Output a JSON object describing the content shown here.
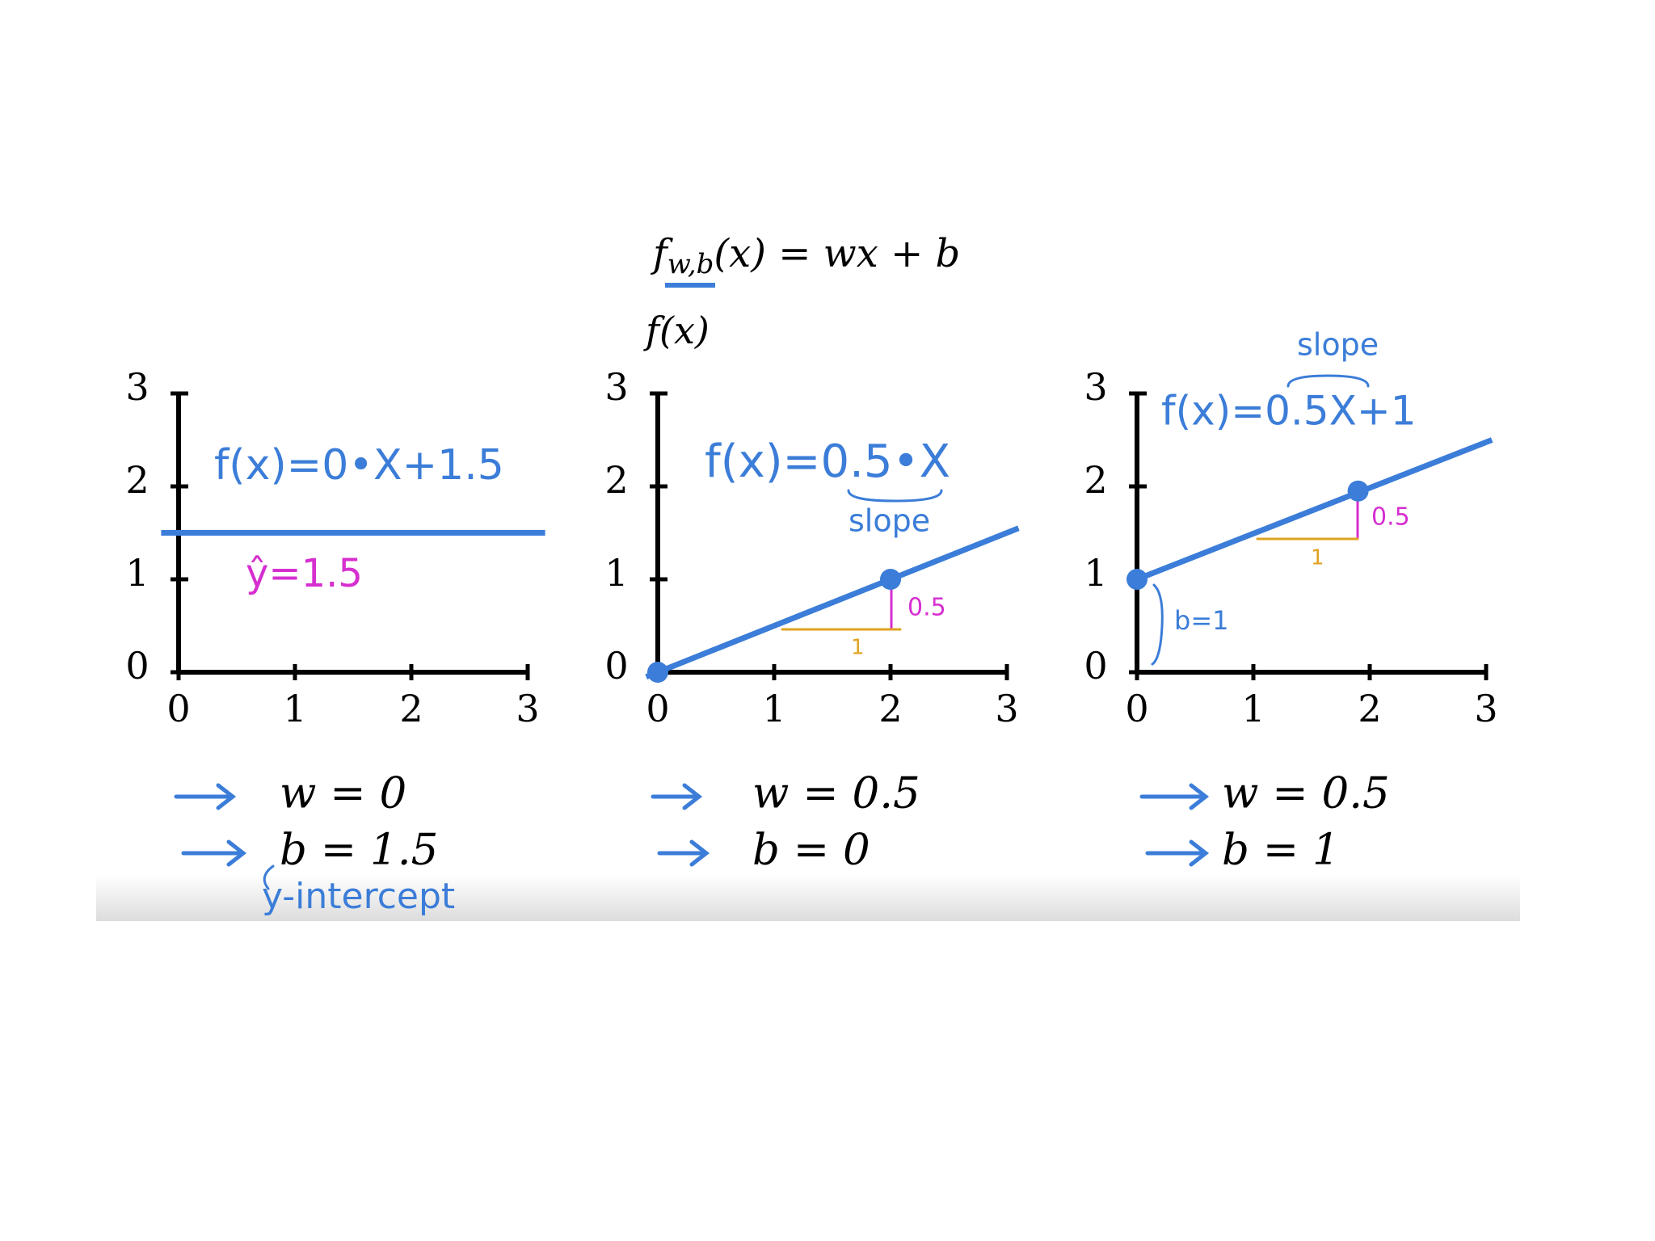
{
  "header": {
    "formula": {
      "f": "f",
      "subscript": "w,b",
      "rest": "(x) = wx + b"
    },
    "y_label": "f(x)"
  },
  "chart_data": [
    {
      "type": "line",
      "x": [
        -0.15,
        3.15
      ],
      "series": [
        {
          "color": "#3b7dd8",
          "values": [
            1.5,
            1.5
          ]
        }
      ],
      "xlim": [
        0,
        3
      ],
      "ylim": [
        0,
        3
      ],
      "xticks": [
        0,
        1,
        2,
        3
      ],
      "yticks": [
        0,
        1,
        2,
        3
      ],
      "annotations": [
        {
          "text": "f(x)=0•X+1.5",
          "color": "#3b7dd8"
        },
        {
          "text": "ŷ=1.5",
          "color": "#d62fd0"
        },
        {
          "text": "y-intercept",
          "color": "#3b7dd8"
        }
      ],
      "parameters": [
        "w = 0",
        "b = 1.5"
      ]
    },
    {
      "type": "line",
      "x": [
        -0.1,
        3.1
      ],
      "series": [
        {
          "color": "#3b7dd8",
          "values": [
            -0.05,
            1.55
          ]
        }
      ],
      "points": {
        "x": [
          0,
          2
        ],
        "y": [
          0,
          1
        ]
      },
      "xlim": [
        0,
        3
      ],
      "ylim": [
        0,
        3
      ],
      "xticks": [
        0,
        1,
        2,
        3
      ],
      "yticks": [
        0,
        1,
        2,
        3
      ],
      "annotations": [
        {
          "text": "f(x)=0.5•X",
          "color": "#3b7dd8"
        },
        {
          "text": "slope",
          "color": "#3b7dd8"
        },
        {
          "text": "0.5",
          "color": "#d62fd0"
        },
        {
          "text": "1",
          "color": "#e0a320"
        }
      ],
      "parameters": [
        "w = 0.5",
        "b = 0"
      ]
    },
    {
      "type": "line",
      "x": [
        0,
        3.05
      ],
      "series": [
        {
          "color": "#3b7dd8",
          "values": [
            1,
            2.5
          ]
        }
      ],
      "points": {
        "x": [
          0,
          1.9
        ],
        "y": [
          1,
          1.95
        ]
      },
      "xlim": [
        0,
        3
      ],
      "ylim": [
        0,
        3
      ],
      "xticks": [
        0,
        1,
        2,
        3
      ],
      "yticks": [
        0,
        1,
        2,
        3
      ],
      "annotations": [
        {
          "text": "slope",
          "color": "#3b7dd8"
        },
        {
          "text": "f(x)=0.5X+1",
          "color": "#3b7dd8"
        },
        {
          "text": "0.5",
          "color": "#d62fd0"
        },
        {
          "text": "1",
          "color": "#e0a320"
        },
        {
          "text": "b=1",
          "color": "#3b7dd8"
        }
      ],
      "parameters": [
        "w = 0.5",
        "b = 1"
      ]
    }
  ]
}
